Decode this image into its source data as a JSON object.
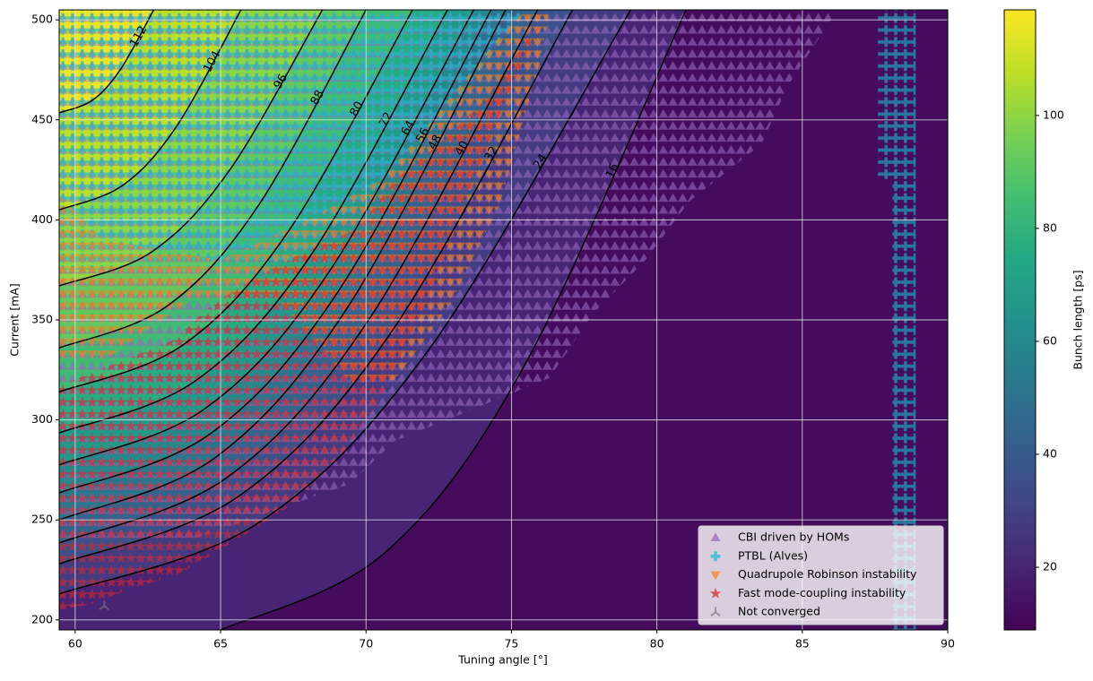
{
  "chart_data": {
    "type": "contour-map",
    "xlabel": "Tuning angle [°]",
    "ylabel": "Current [mA]",
    "xlim": [
      59.45,
      90
    ],
    "ylim": [
      195,
      505
    ],
    "xticks": [
      60,
      65,
      70,
      75,
      80,
      85,
      90
    ],
    "yticks": [
      200,
      250,
      300,
      350,
      400,
      450,
      500
    ],
    "grid": true,
    "colormap": "viridis",
    "colorbar": {
      "label": "Bunch length [ps]",
      "lim": [
        8.9,
        118.7
      ],
      "ticks": [
        20,
        40,
        60,
        80,
        100
      ]
    },
    "background_level": 12,
    "contours": [
      {
        "level": 16,
        "x": [
          65,
          70.6,
          75.4,
          81
        ],
        "y": [
          195,
          233,
          326,
          505
        ]
      },
      {
        "level": 24,
        "x": [
          59.45,
          66.33,
          72.22,
          79.1
        ],
        "y": [
          213,
          248.8,
          336.4,
          505
        ]
      },
      {
        "level": 32,
        "x": [
          59.45,
          65.63,
          70.92,
          77.1
        ],
        "y": [
          228,
          261.9,
          345.0,
          505
        ]
      },
      {
        "level": 40,
        "x": [
          59.45,
          65.21,
          70.14,
          75.9
        ],
        "y": [
          238.5,
          271.1,
          351.1,
          505
        ]
      },
      {
        "level": 48,
        "x": [
          59.45,
          64.82,
          69.43,
          74.8
        ],
        "y": [
          250,
          281.2,
          357.7,
          505
        ]
      },
      {
        "level": 56,
        "x": [
          59.45,
          64.65,
          69.1,
          74.3
        ],
        "y": [
          263.5,
          293.1,
          365.5,
          505
        ]
      },
      {
        "level": 64,
        "x": [
          59.45,
          64.44,
          68.71,
          73.7
        ],
        "y": [
          277.5,
          305.4,
          373.6,
          505
        ]
      },
      {
        "level": 72,
        "x": [
          59.45,
          64.12,
          68.13,
          72.8
        ],
        "y": [
          293.5,
          319.4,
          382.9,
          505
        ]
      },
      {
        "level": 80,
        "x": [
          59.45,
          63.7,
          67.35,
          71.6
        ],
        "y": [
          314,
          337.4,
          394.7,
          505
        ]
      },
      {
        "level": 88,
        "x": [
          59.45,
          63.14,
          66.31,
          70.0
        ],
        "y": [
          336,
          356.7,
          407.4,
          505
        ]
      },
      {
        "level": 96,
        "x": [
          59.45,
          62.62,
          65.33,
          68.5
        ],
        "y": [
          367,
          383.9,
          425.3,
          505
        ]
      },
      {
        "level": 104,
        "x": [
          59.45,
          61.64,
          63.51,
          65.7
        ],
        "y": [
          405,
          417.3,
          447.3,
          505
        ]
      },
      {
        "level": 112,
        "x": [
          59.45,
          60.59,
          61.56,
          62.7
        ],
        "y": [
          453.5,
          459.8,
          475.3,
          505
        ]
      }
    ],
    "regions": [
      {
        "name": "CBI driven by HOMs",
        "color": "#9467bd",
        "marker": "^",
        "x": [
          59.45,
          86.2,
          85.3,
          84.5,
          83.6,
          81.1,
          79.6,
          77.8,
          76.3,
          70.98,
          69.44,
          64.19,
          59.45
        ],
        "y": [
          505,
          505,
          484.8,
          467,
          438,
          409,
          379.8,
          353,
          321,
          289.4,
          268.0,
          241.2,
          241
        ]
      },
      {
        "name": "PTBL (Alves)",
        "color": "#17becf",
        "marker": "P",
        "x": [
          59.45,
          75.5,
          75,
          73.4,
          71.6,
          69.7,
          67.6,
          65.1,
          62.0,
          59.45,
          null,
          87.6,
          88.9,
          88.9,
          88.1,
          88.1,
          87.6
        ],
        "y": [
          505,
          505,
          496,
          464.7,
          433.4,
          406.6,
          379.8,
          375.3,
          375.3,
          375,
          null,
          505,
          505,
          195,
          195,
          420,
          420
        ]
      },
      {
        "name": "Quadrupole Robinson instability",
        "color": "#ff7f0e",
        "marker": "v",
        "x": [
          59.45,
          61,
          65,
          68,
          70.5,
          72,
          74.5,
          75.5,
          76.3,
          76,
          74.6,
          72.9,
          71,
          69.5,
          67,
          64,
          61,
          59.45
        ],
        "y": [
          412,
          390,
          380,
          400,
          420,
          445,
          490,
          505,
          505,
          480,
          408,
          358,
          320,
          318,
          360,
          360,
          330,
          330
        ]
      },
      {
        "name": "Fast mode-coupling instability",
        "color": "#d62728",
        "marker": "*",
        "x": [
          59.45,
          63.4,
          64.5,
          65.6,
          67.6,
          69.7,
          71.0,
          72.5,
          74.1,
          75.6,
          75.9,
          74.7,
          73.1,
          71.9,
          70.4,
          69.1,
          67.6,
          65.7,
          63.6,
          61.7,
          60.5,
          59.45
        ],
        "y": [
          317,
          340,
          355,
          366,
          382,
          395.4,
          420,
          437.9,
          460,
          491.5,
          496,
          455.7,
          397.6,
          352.9,
          308.2,
          281.4,
          259.1,
          241.2,
          223.3,
          214.4,
          207.7,
          205
        ]
      },
      {
        "name": "Not converged",
        "color": "#7f7f7f",
        "marker": "1",
        "x": [
          61.0
        ],
        "y": [
          207
        ]
      }
    ]
  }
}
